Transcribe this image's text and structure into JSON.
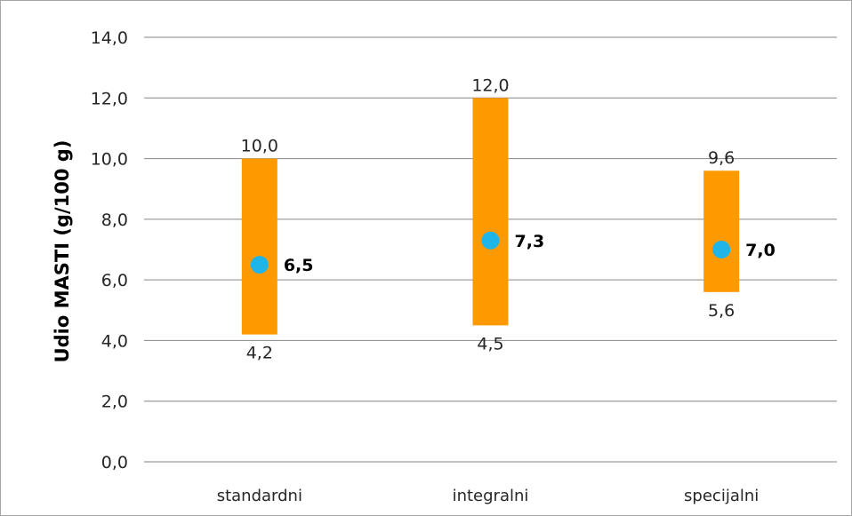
{
  "chart_data": {
    "type": "range",
    "ylabel": "Udio MASTI (g/100 g)",
    "ylim": [
      0,
      14
    ],
    "yticks": [
      "0,0",
      "2,0",
      "4,0",
      "6,0",
      "8,0",
      "10,0",
      "12,0",
      "14,0"
    ],
    "ytick_values": [
      0,
      2,
      4,
      6,
      8,
      10,
      12,
      14
    ],
    "grid": true,
    "categories": [
      "standardni",
      "integralni",
      "specijalni"
    ],
    "min": [
      4.2,
      4.5,
      5.6
    ],
    "max": [
      10.0,
      12.0,
      9.6
    ],
    "mean": [
      6.5,
      7.3,
      7.0
    ],
    "min_labels": [
      "4,2",
      "4,5",
      "5,6"
    ],
    "max_labels": [
      "10,0",
      "12,0",
      "9,6"
    ],
    "mean_labels": [
      "6,5",
      "7,3",
      "7,0"
    ],
    "colors": {
      "range_bar": "#ff9900",
      "mean_marker": "#1fb5e8",
      "grid": "#868686"
    }
  }
}
